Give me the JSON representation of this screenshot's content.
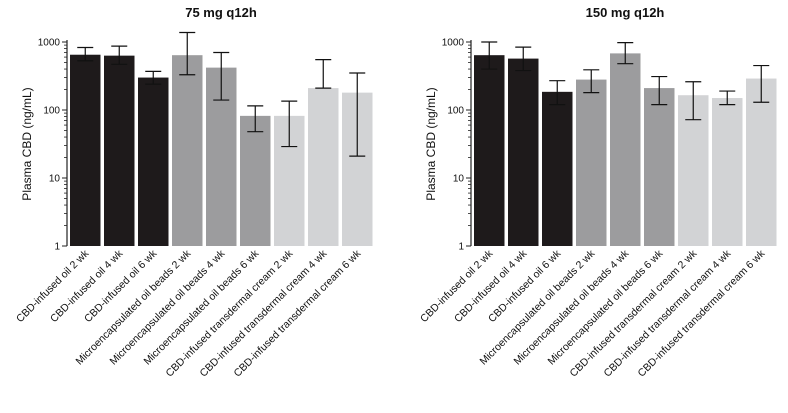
{
  "chart_data": [
    {
      "type": "bar",
      "title": "75 mg q12h",
      "ylabel": "Plasma CBD (ng/mL)",
      "yscale": "log",
      "ylim": [
        1,
        1000
      ],
      "yticks": [
        "1",
        "10",
        "100",
        "1000"
      ],
      "grid": false,
      "categories": [
        "CBD-infused oil 2 wk",
        "CBD-infused oil 4 wk",
        "CBD-infused oil 6 wk",
        "Microencapsulated oil beads 2 wk",
        "Microencapsulated oil beads 4 wk",
        "Microencapsulated oil beads 6 wk",
        "CBD-infused transdermal cream 2 wk",
        "CBD-infused transdermal cream 4 wk",
        "CBD-infused transdermal cream 6 wk"
      ],
      "values": [
        650,
        630,
        300,
        640,
        420,
        82,
        82,
        210,
        180
      ],
      "error_low": [
        530,
        470,
        240,
        330,
        140,
        48,
        29,
        210,
        21
      ],
      "error_high": [
        830,
        870,
        370,
        1380,
        700,
        115,
        135,
        550,
        350
      ],
      "colors": [
        "#1e1a1b",
        "#1e1a1b",
        "#1e1a1b",
        "#9c9c9e",
        "#9c9c9e",
        "#9c9c9e",
        "#d2d3d5",
        "#d2d3d5",
        "#d2d3d5"
      ]
    },
    {
      "type": "bar",
      "title": "150 mg q12h",
      "ylabel": "Plasma CBD (ng/mL)",
      "yscale": "log",
      "ylim": [
        1,
        1000
      ],
      "yticks": [
        "1",
        "10",
        "100",
        "1000"
      ],
      "grid": false,
      "categories": [
        "CBD-infused oil 2 wk",
        "CBD-infused oil 4 wk",
        "CBD-infused oil 6 wk",
        "Microencapsulated oil beads 2 wk",
        "Microencapsulated oil beads 4 wk",
        "Microencapsulated oil beads 6 wk",
        "CBD-infused transdermal cream 2 wk",
        "CBD-infused transdermal cream 4 wk",
        "CBD-infused transdermal cream 6 wk"
      ],
      "values": [
        640,
        570,
        185,
        280,
        680,
        210,
        165,
        150,
        290
      ],
      "error_low": [
        400,
        380,
        120,
        180,
        480,
        120,
        72,
        120,
        130
      ],
      "error_high": [
        1000,
        840,
        270,
        390,
        980,
        310,
        260,
        190,
        450
      ],
      "colors": [
        "#1e1a1b",
        "#1e1a1b",
        "#1e1a1b",
        "#9c9c9e",
        "#9c9c9e",
        "#9c9c9e",
        "#d2d3d5",
        "#d2d3d5",
        "#d2d3d5"
      ]
    }
  ]
}
